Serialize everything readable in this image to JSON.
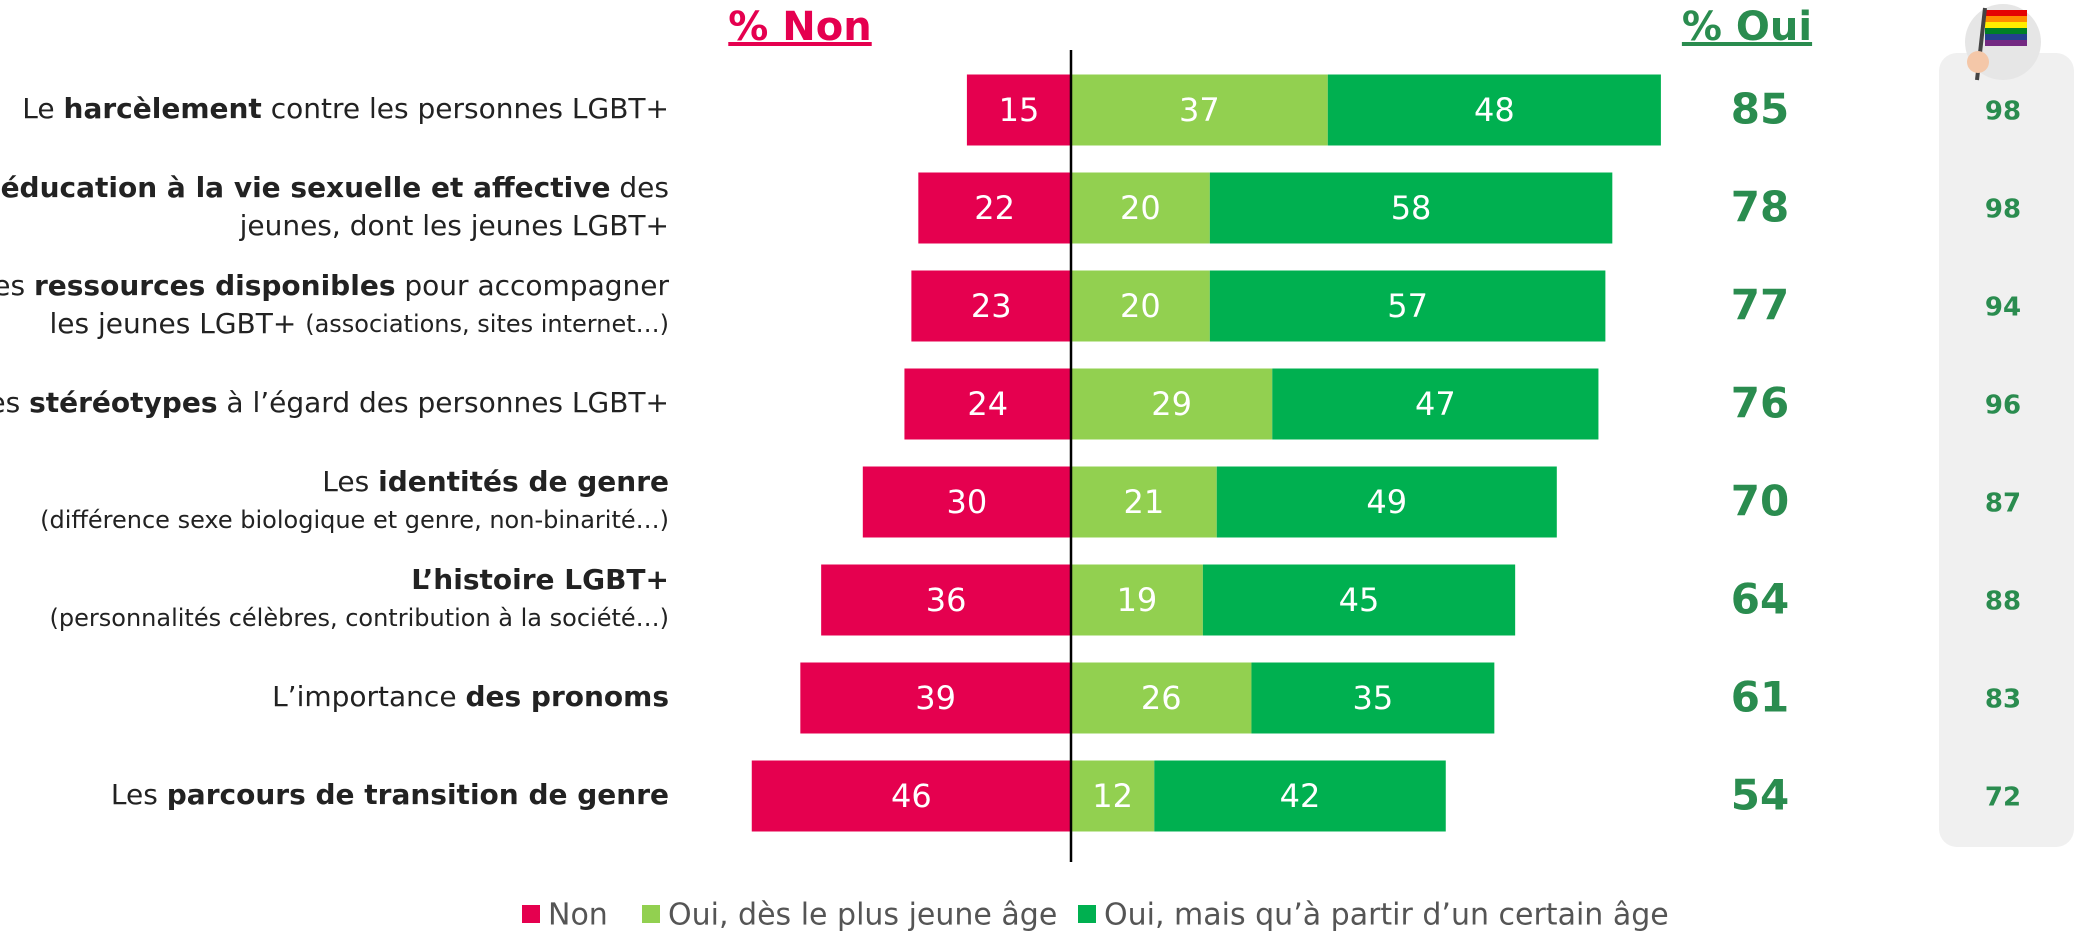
{
  "chart_data": {
    "type": "diverging_bar",
    "left_header": "% Non",
    "right_header": "% Oui",
    "categories": [
      [
        [
          {
            "text": "Le "
          },
          {
            "text": "harcèlement",
            "bold": true
          },
          {
            "text": " contre les personnes LGBT+"
          }
        ]
      ],
      [
        [
          {
            "text": "L’éducation à la vie sexuelle et affective",
            "bold": true
          },
          {
            "text": " des"
          }
        ],
        [
          {
            "text": "jeunes, dont les jeunes LGBT+"
          }
        ]
      ],
      [
        [
          {
            "text": "Les "
          },
          {
            "text": "ressources disponibles",
            "bold": true
          },
          {
            "text": " pour accompagner"
          }
        ],
        [
          {
            "text": "les jeunes LGBT+ "
          },
          {
            "text": "(associations, sites internet…)",
            "small": true
          }
        ]
      ],
      [
        [
          {
            "text": "Les "
          },
          {
            "text": "stéréotypes",
            "bold": true
          },
          {
            "text": " à l’égard des personnes LGBT+"
          }
        ]
      ],
      [
        [
          {
            "text": "Les "
          },
          {
            "text": "identités de genre",
            "bold": true
          }
        ],
        [
          {
            "text": "(différence sexe biologique et genre, non-binarité…)",
            "small": true
          }
        ]
      ],
      [
        [
          {
            "text": "L’histoire LGBT+",
            "bold": true
          }
        ],
        [
          {
            "text": "(personnalités célèbres, contribution à la société…)",
            "small": true
          }
        ]
      ],
      [
        [
          {
            "text": "L’importance "
          },
          {
            "text": "des pronoms",
            "bold": true
          }
        ]
      ],
      [
        [
          {
            "text": "Les "
          },
          {
            "text": "parcours de transition de genre",
            "bold": true
          }
        ]
      ]
    ],
    "series": [
      {
        "name": "Non",
        "color": "#e5004f",
        "side": "left",
        "values": [
          15,
          22,
          23,
          24,
          30,
          36,
          39,
          46
        ]
      },
      {
        "name": "Oui, dès le plus jeune âge",
        "color": "#92d050",
        "side": "right",
        "values": [
          37,
          20,
          20,
          29,
          21,
          19,
          26,
          12
        ]
      },
      {
        "name": "Oui, mais qu’à partir d’un certain âge",
        "color": "#00b050",
        "side": "right",
        "values": [
          48,
          58,
          57,
          47,
          49,
          45,
          35,
          42
        ]
      }
    ],
    "oui_totals": {
      "color": "#2a8c4f",
      "values": [
        85,
        78,
        77,
        76,
        70,
        64,
        61,
        54
      ]
    },
    "flag_column": {
      "color": "#2a8c4f",
      "values": [
        98,
        98,
        94,
        96,
        87,
        88,
        83,
        72
      ]
    }
  }
}
